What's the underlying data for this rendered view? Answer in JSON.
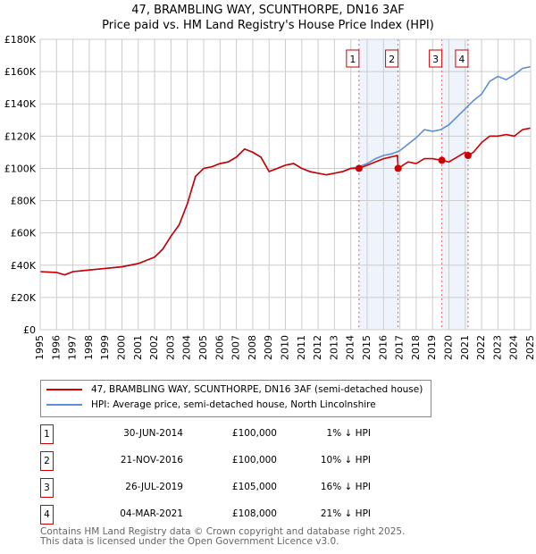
{
  "chart_data": {
    "type": "line",
    "title": "47, BRAMBLING WAY, SCUNTHORPE, DN16 3AF",
    "subtitle": "Price paid vs. HM Land Registry's House Price Index (HPI)",
    "xlim": [
      1995,
      2025
    ],
    "ylim": [
      0,
      180000
    ],
    "y_ticks": [
      {
        "v": 0,
        "label": "£0"
      },
      {
        "v": 20000,
        "label": "£20K"
      },
      {
        "v": 40000,
        "label": "£40K"
      },
      {
        "v": 60000,
        "label": "£60K"
      },
      {
        "v": 80000,
        "label": "£80K"
      },
      {
        "v": 100000,
        "label": "£100K"
      },
      {
        "v": 120000,
        "label": "£120K"
      },
      {
        "v": 140000,
        "label": "£140K"
      },
      {
        "v": 160000,
        "label": "£160K"
      },
      {
        "v": 180000,
        "label": "£180K"
      }
    ],
    "x_ticks": [
      "1995",
      "1996",
      "1997",
      "1998",
      "1999",
      "2000",
      "2001",
      "2002",
      "2003",
      "2004",
      "2005",
      "2006",
      "2007",
      "2008",
      "2009",
      "2010",
      "2011",
      "2012",
      "2013",
      "2014",
      "2015",
      "2016",
      "2017",
      "2018",
      "2019",
      "2020",
      "2021",
      "2022",
      "2023",
      "2024",
      "2025"
    ],
    "grid": true,
    "series": [
      {
        "name": "47, BRAMBLING WAY, SCUNTHORPE, DN16 3AF (semi-detached house)",
        "color": "#cc0000",
        "x": [
          1995,
          1996,
          1996.5,
          1997,
          1998,
          1999,
          2000,
          2001,
          2002,
          2002.5,
          2003,
          2003.5,
          2004,
          2004.5,
          2005,
          2005.5,
          2006,
          2006.5,
          2007,
          2007.5,
          2008,
          2008.5,
          2009,
          2009.5,
          2010,
          2010.5,
          2011,
          2011.5,
          2012,
          2012.5,
          2013,
          2013.5,
          2014,
          2014.5,
          2015,
          2015.5,
          2016,
          2016.85,
          2016.9,
          2017.5,
          2018,
          2018.5,
          2019,
          2019.57,
          2020,
          2020.5,
          2021,
          2021.17,
          2021.5,
          2022,
          2022.5,
          2023,
          2023.5,
          2024,
          2024.5,
          2025
        ],
        "y": [
          36000,
          35500,
          34000,
          36000,
          37000,
          38000,
          39000,
          41000,
          45000,
          50000,
          58000,
          65000,
          78000,
          95000,
          100000,
          101000,
          103000,
          104000,
          107000,
          112000,
          110000,
          107000,
          98000,
          100000,
          102000,
          103000,
          100000,
          98000,
          97000,
          96000,
          97000,
          98000,
          100000,
          100000,
          102000,
          104000,
          106000,
          108000,
          100000,
          104000,
          103000,
          106000,
          106000,
          105000,
          104000,
          107000,
          110000,
          108000,
          110000,
          116000,
          120000,
          120000,
          121000,
          120000,
          124000,
          125000
        ]
      },
      {
        "name": "HPI: Average price, semi-detached house, North Lincolnshire",
        "color": "#5b8fd6",
        "x": [
          1995,
          1996,
          1996.5,
          1997,
          1998,
          1999,
          2000,
          2001,
          2002,
          2002.5,
          2003,
          2003.5,
          2004,
          2004.5,
          2005,
          2005.5,
          2006,
          2006.5,
          2007,
          2007.5,
          2008,
          2008.5,
          2009,
          2009.5,
          2010,
          2010.5,
          2011,
          2011.5,
          2012,
          2012.5,
          2013,
          2013.5,
          2014,
          2014.5,
          2015,
          2015.5,
          2016,
          2016.5,
          2017,
          2017.5,
          2018,
          2018.5,
          2019,
          2019.5,
          2020,
          2020.5,
          2021,
          2021.5,
          2022,
          2022.5,
          2023,
          2023.5,
          2024,
          2024.5,
          2025
        ],
        "y": [
          36000,
          35500,
          34000,
          36000,
          37000,
          38000,
          39000,
          41000,
          45000,
          50000,
          58000,
          65000,
          78000,
          95000,
          100000,
          101000,
          103000,
          104000,
          107000,
          112000,
          110000,
          107000,
          98000,
          100000,
          102000,
          103000,
          100000,
          98000,
          97000,
          96000,
          97000,
          98000,
          100000,
          101000,
          103000,
          106000,
          108000,
          109000,
          111000,
          115000,
          119000,
          124000,
          123000,
          124000,
          127000,
          132000,
          137000,
          142000,
          146000,
          154000,
          157000,
          155000,
          158000,
          162000,
          163000
        ]
      }
    ],
    "sales": [
      {
        "label": "1",
        "date": "30-JUN-2014",
        "x": 2014.5,
        "price": "£100,000",
        "value": 100000,
        "hpi": "1% ↓ HPI"
      },
      {
        "label": "2",
        "date": "21-NOV-2016",
        "x": 2016.89,
        "price": "£100,000",
        "value": 100000,
        "hpi": "10% ↓ HPI"
      },
      {
        "label": "3",
        "date": "26-JUL-2019",
        "x": 2019.57,
        "price": "£105,000",
        "value": 105000,
        "hpi": "16% ↓ HPI"
      },
      {
        "label": "4",
        "date": "04-MAR-2021",
        "x": 2021.17,
        "price": "£108,000",
        "value": 108000,
        "hpi": "21% ↓ HPI"
      }
    ],
    "shaded_ranges": [
      [
        2014.5,
        2016.89
      ],
      [
        2019.57,
        2021.17
      ]
    ]
  },
  "footer": {
    "line1": "Contains HM Land Registry data © Crown copyright and database right 2025.",
    "line2": "This data is licensed under the Open Government Licence v3.0."
  }
}
